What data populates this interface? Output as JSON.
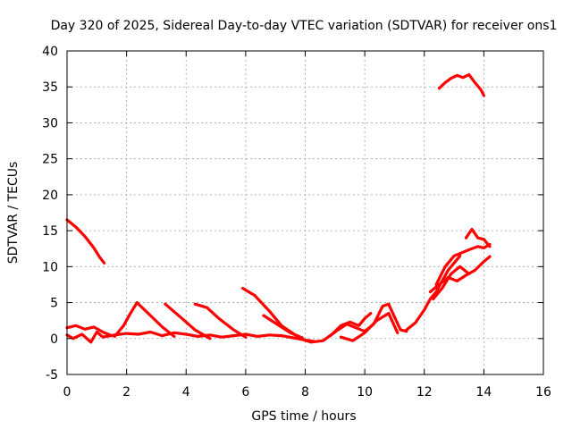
{
  "chart_data": {
    "type": "line",
    "title": "Day 320 of 2025, Sidereal Day-to-day VTEC variation (SDTVAR) for receiver ons1",
    "xlabel": "GPS time / hours",
    "ylabel": "SDTVAR / TECUs",
    "xlim": [
      0,
      16
    ],
    "ylim": [
      -5,
      40
    ],
    "xticks": [
      0,
      2,
      4,
      6,
      8,
      10,
      12,
      14,
      16
    ],
    "yticks": [
      -5,
      0,
      5,
      10,
      15,
      20,
      25,
      30,
      35,
      40
    ],
    "grid": true,
    "color": "#ff0000",
    "series": [
      {
        "name": "s1",
        "x": [
          0.0,
          0.3,
          0.6,
          0.9,
          1.1,
          1.25
        ],
        "y": [
          16.5,
          15.5,
          14.2,
          12.6,
          11.3,
          10.5
        ]
      },
      {
        "name": "s2",
        "x": [
          12.5,
          12.7,
          12.9,
          13.1,
          13.3,
          13.5,
          13.7,
          13.9,
          14.0
        ],
        "y": [
          34.8,
          35.6,
          36.2,
          36.6,
          36.3,
          36.7,
          35.6,
          34.6,
          33.8
        ]
      },
      {
        "name": "s3",
        "x": [
          0.0,
          0.2,
          0.5,
          0.8,
          1.0,
          1.2,
          1.6,
          2.0,
          2.4,
          2.8,
          3.2,
          3.6,
          4.0,
          4.4,
          4.8,
          5.2,
          5.6,
          6.0,
          6.4,
          6.8,
          7.2,
          7.6,
          8.0,
          8.3
        ],
        "y": [
          0.5,
          0.0,
          0.6,
          -0.5,
          0.9,
          0.2,
          0.5,
          0.7,
          0.6,
          0.9,
          0.4,
          0.8,
          0.6,
          0.3,
          0.5,
          0.2,
          0.4,
          0.6,
          0.3,
          0.5,
          0.4,
          0.1,
          -0.2,
          -0.4
        ]
      },
      {
        "name": "s4",
        "x": [
          0.0,
          0.3,
          0.6,
          0.9,
          1.2,
          1.5
        ],
        "y": [
          1.5,
          1.8,
          1.3,
          1.6,
          0.9,
          0.4
        ]
      },
      {
        "name": "s5",
        "x": [
          1.6,
          1.9,
          2.1,
          2.35
        ],
        "y": [
          0.3,
          1.8,
          3.3,
          5.0
        ]
      },
      {
        "name": "s6",
        "x": [
          2.35,
          2.8,
          3.2,
          3.6
        ],
        "y": [
          5.0,
          3.2,
          1.6,
          0.3
        ]
      },
      {
        "name": "s7",
        "x": [
          3.3,
          3.8,
          4.3,
          4.8
        ],
        "y": [
          4.8,
          3.0,
          1.2,
          0.0
        ]
      },
      {
        "name": "s8",
        "x": [
          4.3,
          4.7,
          5.1,
          5.6,
          6.0
        ],
        "y": [
          4.8,
          4.3,
          2.8,
          1.2,
          0.2
        ]
      },
      {
        "name": "s9",
        "x": [
          5.9,
          6.3,
          6.8,
          7.2,
          7.7
        ],
        "y": [
          7.0,
          6.0,
          3.8,
          1.8,
          0.4
        ]
      },
      {
        "name": "s10",
        "x": [
          6.6,
          6.9,
          7.2,
          7.5,
          7.9
        ],
        "y": [
          3.2,
          2.4,
          1.6,
          0.8,
          0.1
        ]
      },
      {
        "name": "s11",
        "x": [
          7.8,
          8.2,
          8.6,
          8.9,
          9.2,
          9.5,
          9.8,
          10.0,
          10.2
        ],
        "y": [
          0.0,
          -0.5,
          -0.3,
          0.6,
          1.8,
          2.3,
          1.8,
          2.8,
          3.5
        ]
      },
      {
        "name": "s12",
        "x": [
          8.8,
          9.1,
          9.4,
          9.7,
          10.0,
          10.3,
          10.6,
          10.8,
          11.0,
          11.2,
          11.4
        ],
        "y": [
          0.3,
          1.2,
          2.0,
          1.5,
          1.0,
          2.0,
          4.5,
          4.8,
          3.0,
          1.2,
          1.0
        ]
      },
      {
        "name": "s13",
        "x": [
          9.2,
          9.6,
          10.0,
          10.4,
          10.8,
          11.1
        ],
        "y": [
          0.2,
          -0.3,
          0.8,
          2.5,
          3.5,
          0.8
        ]
      },
      {
        "name": "s14",
        "x": [
          11.4,
          11.7,
          12.0,
          12.2,
          12.4,
          12.6,
          12.8,
          13.0,
          13.2
        ],
        "y": [
          1.2,
          2.2,
          4.0,
          5.5,
          6.5,
          8.0,
          9.5,
          10.5,
          11.5
        ]
      },
      {
        "name": "s15",
        "x": [
          12.4,
          12.7,
          13.0,
          13.3,
          13.6,
          13.8,
          14.0,
          14.2
        ],
        "y": [
          7.5,
          10.0,
          11.5,
          12.0,
          12.5,
          12.8,
          12.6,
          13.1
        ]
      },
      {
        "name": "s16",
        "x": [
          13.4,
          13.6,
          13.8,
          14.0,
          14.2
        ],
        "y": [
          14.0,
          15.2,
          14.0,
          13.8,
          12.8
        ]
      },
      {
        "name": "s17",
        "x": [
          12.2,
          12.5,
          12.8,
          13.1,
          13.4,
          13.7,
          14.0,
          14.2
        ],
        "y": [
          6.5,
          7.5,
          8.5,
          8.0,
          8.8,
          9.5,
          10.7,
          11.4
        ]
      },
      {
        "name": "s18",
        "x": [
          12.3,
          12.6,
          12.9,
          13.2,
          13.5
        ],
        "y": [
          5.5,
          7.0,
          9.0,
          10.0,
          9.0
        ]
      }
    ]
  }
}
